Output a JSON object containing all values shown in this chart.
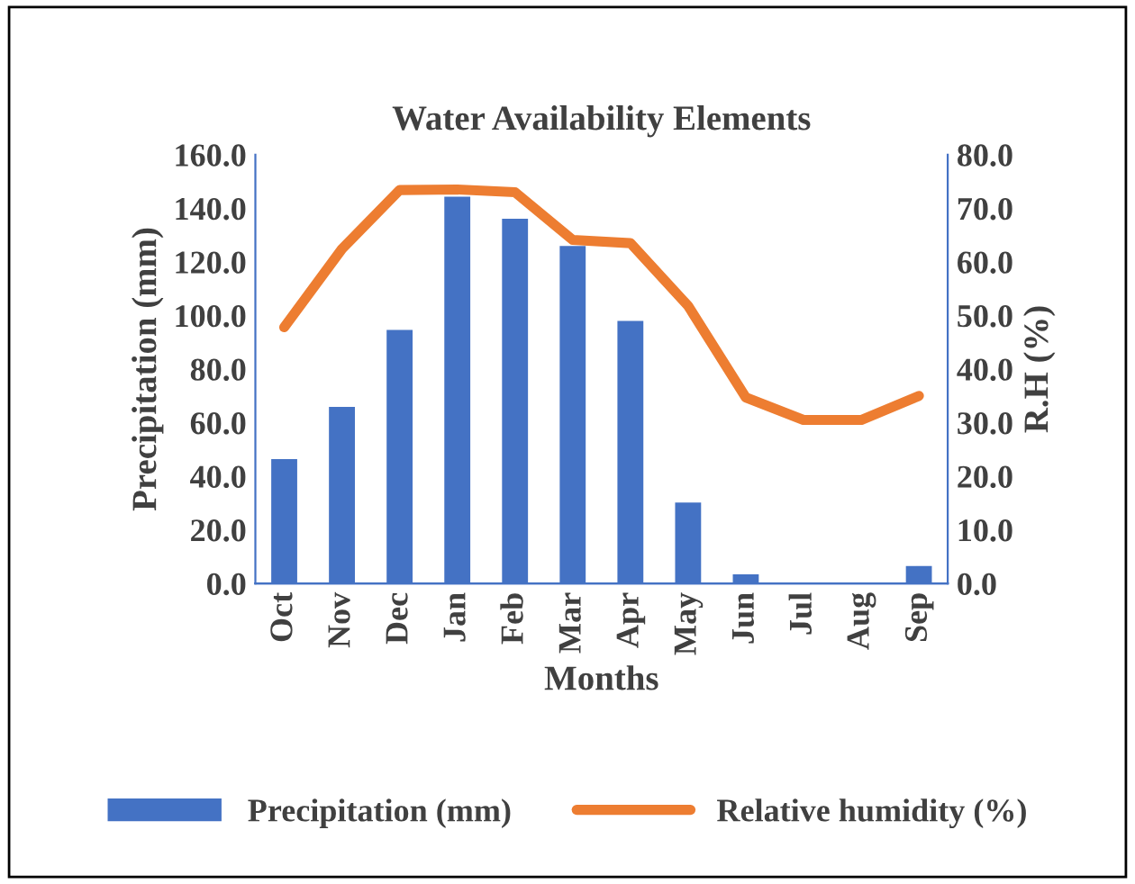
{
  "chart_data": {
    "type": "bar",
    "title": "Water Availability Elements",
    "xlabel": "Months",
    "ylabel": "Precipitation (mm)",
    "y2label": "R.H (%)",
    "categories": [
      "Oct",
      "Nov",
      "Dec",
      "Jan",
      "Feb",
      "Mar",
      "Apr",
      "May",
      "Jun",
      "Jul",
      "Aug",
      "Sep"
    ],
    "series": [
      {
        "name": "Precipitation (mm)",
        "color": "#4472c4",
        "values": [
          46.4,
          65.9,
          94.6,
          144.3,
          136.1,
          125.9,
          98.0,
          30.2,
          3.4,
          0,
          0,
          6.5
        ]
      },
      {
        "name": "Relative humidity (%)",
        "type": "line",
        "axis": "y2",
        "color": "#ed7d31",
        "values": [
          47.8,
          62.4,
          73.4,
          73.5,
          73.0,
          64.1,
          63.5,
          51.8,
          34.7,
          30.5,
          30.5,
          35.0
        ]
      }
    ],
    "ylim": [
      0,
      160
    ],
    "yticks": [
      {
        "value": 0,
        "label": "0.0"
      },
      {
        "value": 20,
        "label": "20.0"
      },
      {
        "value": 40,
        "label": "40.0"
      },
      {
        "value": 60,
        "label": "60.0"
      },
      {
        "value": 80,
        "label": "80.0"
      },
      {
        "value": 100,
        "label": "100.0"
      },
      {
        "value": 120,
        "label": "120.0"
      },
      {
        "value": 140,
        "label": "140.0"
      },
      {
        "value": 160,
        "label": "160.0"
      }
    ],
    "y2lim": [
      0,
      80
    ],
    "y2ticks": [
      {
        "value": 0,
        "label": "0.0"
      },
      {
        "value": 10,
        "label": "10.0"
      },
      {
        "value": 20,
        "label": "20.0"
      },
      {
        "value": 30,
        "label": "30.0"
      },
      {
        "value": 40,
        "label": "40.0"
      },
      {
        "value": 50,
        "label": "50.0"
      },
      {
        "value": 60,
        "label": "60.0"
      },
      {
        "value": 70,
        "label": "70.0"
      },
      {
        "value": 80,
        "label": "80.0"
      }
    ],
    "grid": false,
    "legend": "bottom",
    "marker": "none",
    "line_style": "solid"
  }
}
